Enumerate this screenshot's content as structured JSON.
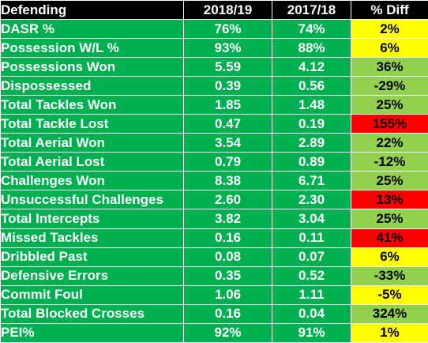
{
  "header": {
    "metric": "Defending",
    "season_a": "2018/19",
    "season_b": "2017/18",
    "diff": "% Diff"
  },
  "colors": {
    "header_bg": "#000000",
    "row_bg": "#00b050",
    "diff_yellow": "#ffff00",
    "diff_light_green": "#92d050",
    "diff_red": "#ff0000"
  },
  "rows": [
    {
      "metric": "DASR %",
      "a": "76%",
      "b": "74%",
      "diff": "2%",
      "diff_color": "yellow"
    },
    {
      "metric": "Possession W/L %",
      "a": "93%",
      "b": "88%",
      "diff": "6%",
      "diff_color": "yellow"
    },
    {
      "metric": "Possessions Won",
      "a": "5.59",
      "b": "4.12",
      "diff": "36%",
      "diff_color": "light_green"
    },
    {
      "metric": "Dispossessed",
      "a": "0.39",
      "b": "0.56",
      "diff": "-29%",
      "diff_color": "light_green"
    },
    {
      "metric": "Total Tackles Won",
      "a": "1.85",
      "b": "1.48",
      "diff": "25%",
      "diff_color": "light_green"
    },
    {
      "metric": "Total Tackle Lost",
      "a": "0.47",
      "b": "0.19",
      "diff": "155%",
      "diff_color": "red"
    },
    {
      "metric": "Total Aerial Won",
      "a": "3.54",
      "b": "2.89",
      "diff": "22%",
      "diff_color": "light_green"
    },
    {
      "metric": "Total Aerial Lost",
      "a": "0.79",
      "b": "0.89",
      "diff": "-12%",
      "diff_color": "light_green"
    },
    {
      "metric": "Challenges Won",
      "a": "8.38",
      "b": "6.71",
      "diff": "25%",
      "diff_color": "light_green"
    },
    {
      "metric": "Unsuccessful Challenges",
      "a": "2.60",
      "b": "2.30",
      "diff": "13%",
      "diff_color": "red"
    },
    {
      "metric": "Total Intercepts",
      "a": "3.82",
      "b": "3.04",
      "diff": "25%",
      "diff_color": "light_green"
    },
    {
      "metric": "Missed Tackles",
      "a": "0.16",
      "b": "0.11",
      "diff": "41%",
      "diff_color": "red"
    },
    {
      "metric": "Dribbled Past",
      "a": "0.08",
      "b": "0.07",
      "diff": "6%",
      "diff_color": "yellow"
    },
    {
      "metric": "Defensive Errors",
      "a": "0.35",
      "b": "0.52",
      "diff": "-33%",
      "diff_color": "light_green"
    },
    {
      "metric": "Commit Foul",
      "a": "1.06",
      "b": "1.11",
      "diff": "-5%",
      "diff_color": "yellow"
    },
    {
      "metric": "Total Blocked Crosses",
      "a": "0.16",
      "b": "0.04",
      "diff": "324%",
      "diff_color": "light_green"
    },
    {
      "metric": "PEI%",
      "a": "92%",
      "b": "91%",
      "diff": "1%",
      "diff_color": "yellow"
    }
  ]
}
